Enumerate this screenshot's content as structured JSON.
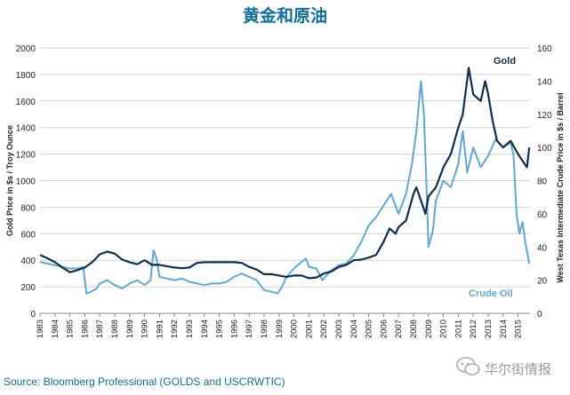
{
  "chart_data": {
    "type": "line",
    "title": "黄金和原油",
    "ylabel_left": "Gold Price in $s / Troy Ounce",
    "ylabel_right": "West Texas Intermediate Crude Price in $s / Barrel",
    "ylim_left": [
      0,
      2000
    ],
    "ylim_right": [
      0,
      160
    ],
    "yticks_left": [
      "0",
      "200",
      "400",
      "600",
      "800",
      "1000",
      "1200",
      "1400",
      "1600",
      "1800",
      "2000"
    ],
    "yticks_right": [
      "0",
      "20",
      "40",
      "60",
      "80",
      "100",
      "120",
      "140",
      "160"
    ],
    "xlim": [
      1983,
      2015.8
    ],
    "xticks": [
      "1983",
      "1984",
      "1985",
      "1986",
      "1987",
      "1988",
      "1989",
      "1990",
      "1991",
      "1992",
      "1993",
      "1994",
      "1995",
      "1996",
      "1997",
      "1998",
      "1999",
      "2000",
      "2001",
      "2002",
      "2003",
      "2004",
      "2005",
      "2006",
      "2007",
      "2008",
      "2009",
      "2010",
      "2011",
      "2012",
      "2013",
      "2014",
      "2015"
    ],
    "grid": true,
    "series": [
      {
        "name": "Gold",
        "axis": "left",
        "color": "#0d2d52",
        "x": [
          1983.0,
          1983.5,
          1984.0,
          1984.5,
          1985.0,
          1985.5,
          1986.0,
          1986.5,
          1987.0,
          1987.5,
          1988.0,
          1988.5,
          1989.0,
          1989.5,
          1990.0,
          1990.5,
          1991.0,
          1991.5,
          1992.0,
          1992.5,
          1993.0,
          1993.5,
          1994.0,
          1994.5,
          1995.0,
          1995.5,
          1996.0,
          1996.5,
          1997.0,
          1997.5,
          1998.0,
          1998.5,
          1999.0,
          1999.5,
          2000.0,
          2000.5,
          2001.0,
          2001.5,
          2002.0,
          2002.5,
          2003.0,
          2003.5,
          2004.0,
          2004.5,
          2005.0,
          2005.5,
          2006.0,
          2006.4,
          2006.8,
          2007.0,
          2007.5,
          2008.0,
          2008.2,
          2008.5,
          2008.8,
          2009.0,
          2009.5,
          2010.0,
          2010.5,
          2011.0,
          2011.3,
          2011.7,
          2012.0,
          2012.5,
          2012.8,
          2013.0,
          2013.3,
          2013.6,
          2014.0,
          2014.5,
          2015.0,
          2015.3,
          2015.6,
          2015.75
        ],
        "values": [
          440,
          415,
          385,
          345,
          310,
          325,
          345,
          385,
          445,
          465,
          450,
          405,
          385,
          370,
          400,
          365,
          365,
          355,
          345,
          340,
          345,
          380,
          385,
          385,
          385,
          385,
          385,
          380,
          350,
          330,
          295,
          295,
          285,
          275,
          285,
          285,
          265,
          270,
          300,
          315,
          350,
          365,
          400,
          405,
          420,
          440,
          540,
          640,
          600,
          650,
          700,
          900,
          950,
          850,
          750,
          880,
          950,
          1100,
          1200,
          1400,
          1500,
          1850,
          1650,
          1600,
          1750,
          1650,
          1450,
          1300,
          1250,
          1300,
          1200,
          1150,
          1100,
          1250
        ]
      },
      {
        "name": "Crude Oil",
        "axis": "right",
        "color": "#5ba9d9",
        "x": [
          1983.0,
          1983.5,
          1984.0,
          1984.5,
          1985.0,
          1985.5,
          1985.9,
          1986.1,
          1986.4,
          1986.8,
          1987.0,
          1987.5,
          1988.0,
          1988.5,
          1989.0,
          1989.5,
          1990.0,
          1990.4,
          1990.6,
          1990.8,
          1991.0,
          1991.5,
          1992.0,
          1992.5,
          1993.0,
          1993.5,
          1994.0,
          1994.5,
          1995.0,
          1995.5,
          1996.0,
          1996.5,
          1997.0,
          1997.5,
          1998.0,
          1998.5,
          1998.9,
          1999.2,
          1999.5,
          2000.0,
          2000.5,
          2000.8,
          2001.0,
          2001.5,
          2001.9,
          2002.5,
          2003.0,
          2003.5,
          2004.0,
          2004.5,
          2005.0,
          2005.5,
          2006.0,
          2006.5,
          2007.0,
          2007.5,
          2007.9,
          2008.2,
          2008.5,
          2008.7,
          2008.9,
          2009.0,
          2009.3,
          2009.5,
          2010.0,
          2010.5,
          2011.0,
          2011.3,
          2011.6,
          2012.0,
          2012.5,
          2013.0,
          2013.5,
          2014.0,
          2014.5,
          2014.7,
          2014.9,
          2015.1,
          2015.3,
          2015.5,
          2015.75
        ],
        "values": [
          31,
          30,
          29,
          28,
          27,
          27,
          28,
          12,
          13,
          15,
          18,
          20,
          17,
          15,
          18,
          20,
          17,
          20,
          38,
          33,
          22,
          21,
          20,
          21,
          19,
          18,
          17,
          18,
          18,
          19,
          22,
          24,
          22,
          20,
          14,
          13,
          12,
          16,
          22,
          27,
          31,
          33,
          28,
          27,
          20,
          26,
          29,
          30,
          35,
          43,
          53,
          58,
          65,
          72,
          60,
          72,
          90,
          110,
          140,
          120,
          70,
          40,
          50,
          68,
          80,
          76,
          90,
          110,
          85,
          100,
          88,
          95,
          105,
          100,
          103,
          95,
          60,
          48,
          55,
          42,
          30
        ]
      }
    ],
    "legend": [
      {
        "name": "Gold",
        "placement": "top-right"
      },
      {
        "name": "Crude Oil",
        "placement": "bottom-right"
      }
    ]
  },
  "source": "Source: Bloomberg Professional (GOLDS and USCRWTIC)",
  "watermark": {
    "text": "华尔街情报",
    "icon": "chat-bubble-icon"
  }
}
